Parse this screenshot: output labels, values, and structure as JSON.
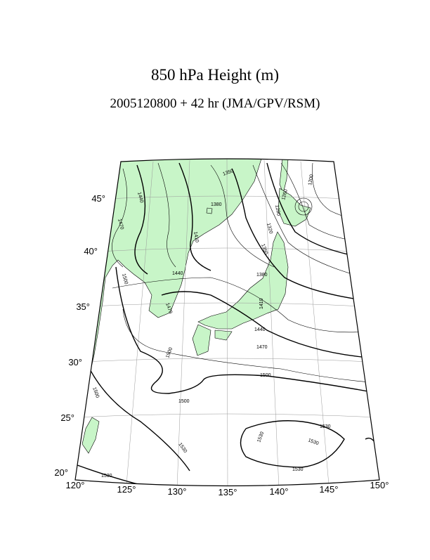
{
  "header": {
    "title": "850 hPa Height (m)",
    "subtitle": "2005120800 + 42 hr (JMA/GPV/RSM)"
  },
  "lat_labels": [
    "45°",
    "40°",
    "35°",
    "30°",
    "25°",
    "20°"
  ],
  "lon_labels": [
    "120°",
    "125°",
    "130°",
    "135°",
    "140°",
    "145°",
    "150°"
  ],
  "contour_labels": [
    "1350",
    "1440",
    "1470",
    "1380",
    "1410",
    "1200",
    "1260",
    "1290",
    "1320",
    "1350",
    "1440",
    "1500",
    "1380",
    "1410",
    "1470",
    "1440",
    "1470",
    "1500",
    "1500",
    "1500",
    "1500",
    "1530",
    "1530",
    "1530",
    "1530",
    "1530",
    "1530"
  ]
}
